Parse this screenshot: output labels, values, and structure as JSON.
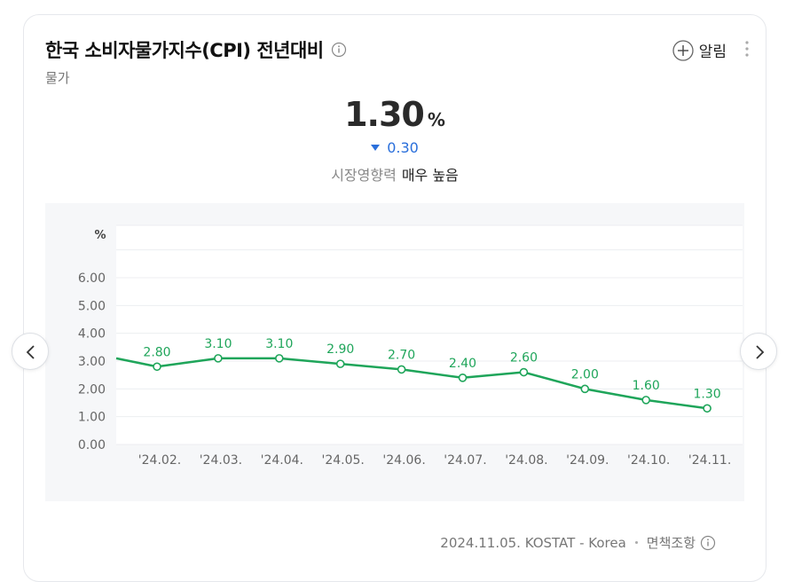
{
  "header": {
    "title": "한국 소비자물가지수(CPI) 전년대비",
    "subtitle": "물가",
    "alarm_label": "알림"
  },
  "summary": {
    "value": "1.30",
    "unit": "%",
    "change": "0.30",
    "change_direction": "down",
    "impact_label": "시장영향력",
    "impact_value": "매우 높음"
  },
  "footer": {
    "source": "2024.11.05. KOSTAT - Korea",
    "disclaimer": "면책조항"
  },
  "colors": {
    "line": "#1fa55a",
    "down": "#2a6fdb"
  },
  "chart_data": {
    "type": "line",
    "unit_label": "%",
    "categories": [
      "'24.02.",
      "'24.03.",
      "'24.04.",
      "'24.05.",
      "'24.06.",
      "'24.07.",
      "'24.08.",
      "'24.09.",
      "'24.10.",
      "'24.11."
    ],
    "values": [
      2.8,
      3.1,
      3.1,
      2.9,
      2.7,
      2.4,
      2.6,
      2.0,
      1.6,
      1.3
    ],
    "value_labels": [
      "2.80",
      "3.10",
      "3.10",
      "2.90",
      "2.70",
      "2.40",
      "2.60",
      "2.00",
      "1.60",
      "1.30"
    ],
    "previous_value": 3.1,
    "y_ticks": [
      "0.00",
      "1.00",
      "2.00",
      "3.00",
      "4.00",
      "5.00",
      "6.00"
    ],
    "ylim": [
      0,
      6
    ],
    "grid": true
  }
}
